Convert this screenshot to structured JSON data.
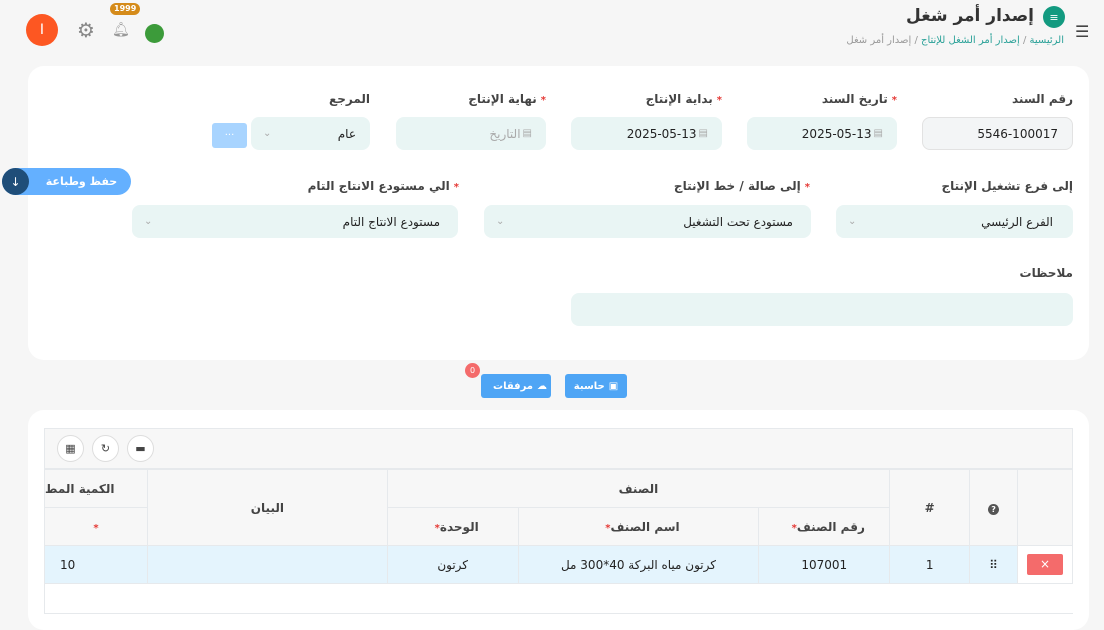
{
  "header": {
    "title": "إصدار أمر شغل",
    "breadcrumb": [
      "الرئيسية",
      "إصدار أمر الشغل للإنتاج",
      "إصدار أمر شغل"
    ],
    "notifications_count": "1999",
    "avatar_letter": "I"
  },
  "form": {
    "doc_number": {
      "label": "رقم السند",
      "value": "5546-100017"
    },
    "doc_date": {
      "label": "تاريخ السند",
      "value": "2025-05-13"
    },
    "start_date": {
      "label": "بداية الإنتاج",
      "value": "2025-05-13"
    },
    "end_date": {
      "label": "نهاية الإنتاج",
      "placeholder": "التاريخ"
    },
    "reference": {
      "label": "المرجع",
      "value": "عام",
      "more": "···"
    },
    "branch": {
      "label": "إلى فرع تشغيل الإنتاج",
      "value": "الفرع الرئيسي"
    },
    "hall": {
      "label": "إلى صالة / خط الإنتاج",
      "value": "مستودع تحت التشغيل"
    },
    "warehouse": {
      "label": "الي مستودع الانتاج التام",
      "value": "مستودع الانتاج التام"
    },
    "notes": {
      "label": "ملاحظات",
      "value": ""
    },
    "save_print": "حفظ وطباعة"
  },
  "actions": {
    "calculator": "حاسبة",
    "attachments": "مرفقات",
    "attachments_count": "0"
  },
  "table": {
    "group_header": "الصنف",
    "hash": "#",
    "item_no": "رقم الصنف",
    "item_name": "اسم الصنف",
    "unit": "الوحدة",
    "description": "البيان",
    "quantity": "الكمية المط",
    "rows": [
      {
        "index": "1",
        "item_no": "107001",
        "item_name": "كرتون مياه البركة 40*300 مل",
        "unit": "كرتون",
        "description": "",
        "quantity": "10",
        "delete": "×"
      }
    ]
  },
  "colors": {
    "accent": "#4ea5f5",
    "brand": "#139a80",
    "danger": "#f46b6b"
  }
}
